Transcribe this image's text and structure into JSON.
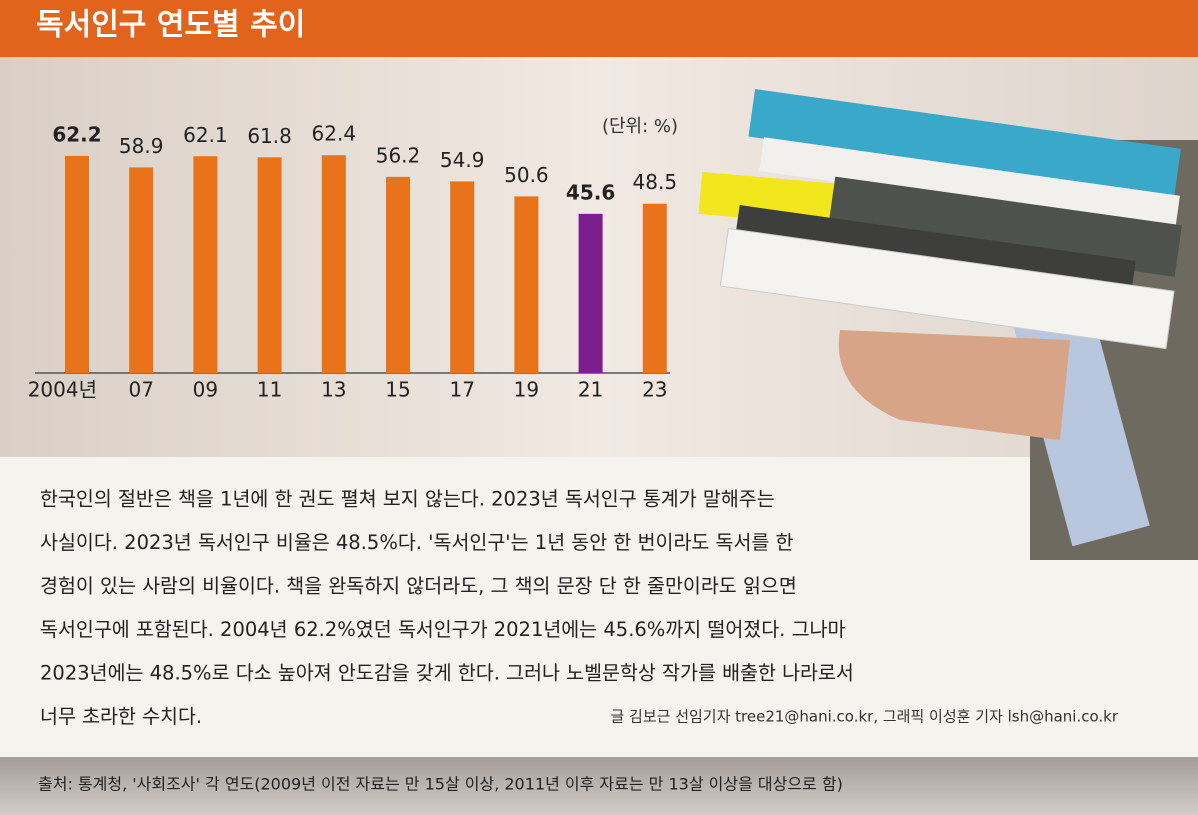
{
  "title": "독서인구 연도별 추이",
  "chart_data": {
    "type": "bar",
    "unit_label": "(단위: %)",
    "categories": [
      "2004년",
      "07",
      "09",
      "11",
      "13",
      "15",
      "17",
      "19",
      "21",
      "23"
    ],
    "values": [
      62.2,
      58.9,
      62.1,
      61.8,
      62.4,
      56.2,
      54.9,
      50.6,
      45.6,
      48.5
    ],
    "colors": [
      "#e8731a",
      "#e8731a",
      "#e8731a",
      "#e8731a",
      "#e8731a",
      "#e8731a",
      "#e8731a",
      "#e8731a",
      "#7b1f8e",
      "#e8731a"
    ]
  },
  "body": {
    "lines": [
      "한국인의 절반은 책을 1년에 한 권도 펼쳐 보지 않는다. 2023년 독서인구 통계가 말해주는",
      "사실이다. 2023년 독서인구 비율은 48.5%다. '독서인구'는 1년 동안 한 번이라도 독서를 한",
      "경험이 있는 사람의 비율이다. 책을 완독하지 않더라도, 그 책의 문장 단 한 줄만이라도 읽으면",
      "독서인구에 포함된다. 2004년 62.2%였던 독서인구가 2021년에는 45.6%까지 떨어졌다. 그나마",
      "2023년에는 48.5%로 다소 높아져 안도감을 갖게 한다. 그러나 노벨문학상 작가를 배출한 나라로서",
      "너무 초라한 수치다."
    ],
    "byline": "글 김보근 선임기자 tree21@hani.co.kr, 그래픽 이성훈 기자 lsh@hani.co.kr"
  },
  "source": "출처: 통계청, '사회조사' 각 연도(2009년 이전 자료는 만 15살 이상, 2011년 이후 자료는 만 13살 이상을 대상으로 함)"
}
